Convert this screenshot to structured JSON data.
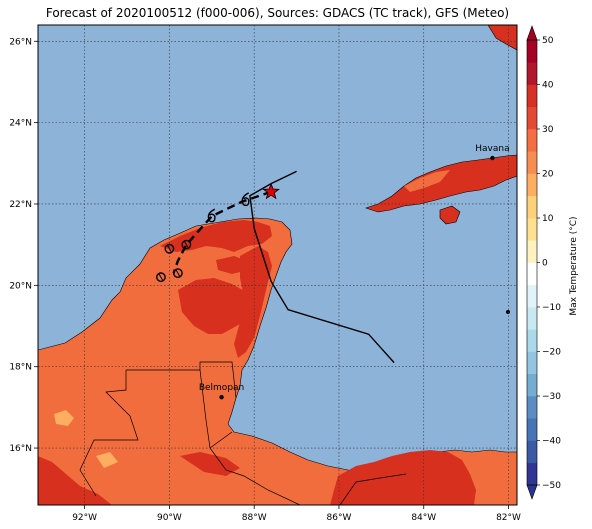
{
  "title": "Forecast of 2020100512 (f000-006), Sources: GDACS (TC track), GFS (Meteo)",
  "map": {
    "lon_range": [
      -93.1,
      -81.8
    ],
    "lat_range": [
      14.6,
      26.4
    ],
    "lon_ticks": [
      {
        "value": -92,
        "label": "92°W"
      },
      {
        "value": -90,
        "label": "90°W"
      },
      {
        "value": -88,
        "label": "88°W"
      },
      {
        "value": -86,
        "label": "86°W"
      },
      {
        "value": -84,
        "label": "84°W"
      },
      {
        "value": -82,
        "label": "82°W"
      }
    ],
    "lat_ticks": [
      {
        "value": 16,
        "label": "16°N"
      },
      {
        "value": 18,
        "label": "18°N"
      },
      {
        "value": 20,
        "label": "20°N"
      },
      {
        "value": 22,
        "label": "22°N"
      },
      {
        "value": 24,
        "label": "24°N"
      },
      {
        "value": 26,
        "label": "26°N"
      }
    ],
    "cities": [
      {
        "name": "Havana",
        "lon": -82.38,
        "lat": 23.13
      },
      {
        "name": "Belmopan",
        "lon": -88.77,
        "lat": 17.25
      }
    ],
    "colors": {
      "ocean": "#8db3d9",
      "land_warm": "#f26d3d",
      "land_hot": "#d7301f",
      "land_mild": "#fdae61",
      "land_dark": "#b2182b"
    }
  },
  "storm": {
    "current_position": {
      "lon": -87.6,
      "lat": 22.3
    },
    "forecast_track": [
      {
        "lon": -88.3,
        "lat": 22.05
      },
      {
        "lon": -89.0,
        "lat": 21.7
      },
      {
        "lon": -89.6,
        "lat": 21.0
      },
      {
        "lon": -89.8,
        "lat": 20.6
      },
      {
        "lon": -89.9,
        "lat": 20.3
      }
    ],
    "track_points": [
      {
        "lon": -88.2,
        "lat": 22.1,
        "symbol": "6"
      },
      {
        "lon": -89.0,
        "lat": 21.7,
        "symbol": "6"
      },
      {
        "lon": -89.6,
        "lat": 21.0,
        "symbol": "o"
      },
      {
        "lon": -90.0,
        "lat": 20.9,
        "symbol": "o"
      },
      {
        "lon": -89.8,
        "lat": 20.3,
        "symbol": "o"
      },
      {
        "lon": -90.2,
        "lat": 20.2,
        "symbol": "o"
      }
    ],
    "past_track": [
      {
        "lon": -84.7,
        "lat": 18.1
      },
      {
        "lon": -85.3,
        "lat": 18.8
      },
      {
        "lon": -87.2,
        "lat": 19.4
      },
      {
        "lon": -87.6,
        "lat": 20.1
      },
      {
        "lon": -88.0,
        "lat": 21.4
      },
      {
        "lon": -88.1,
        "lat": 22.2
      },
      {
        "lon": -87.6,
        "lat": 22.5
      },
      {
        "lon": -87.0,
        "lat": 22.8
      }
    ]
  },
  "colorbar": {
    "label": "Max Temperature (°C)",
    "levels": [
      -50,
      -45,
      -40,
      -35,
      -30,
      -25,
      -20,
      -15,
      -10,
      -5,
      0,
      5,
      10,
      15,
      20,
      25,
      30,
      35,
      40,
      45,
      50
    ],
    "tick_values": [
      50,
      40,
      30,
      20,
      10,
      0,
      -10,
      -20,
      -30,
      -40,
      -50
    ],
    "tick_labels": [
      "50",
      "40",
      "30",
      "20",
      "10",
      "0",
      "−10",
      "−20",
      "−30",
      "−40",
      "−50"
    ],
    "colors": [
      "#2a3593",
      "#313695",
      "#3c59a6",
      "#4575b4",
      "#5d8cc2",
      "#74add1",
      "#93c5e0",
      "#abd9e9",
      "#c9e9f2",
      "#e0f3f8",
      "#ffffff",
      "#fff2c0",
      "#fee090",
      "#fdd07a",
      "#fdae61",
      "#f88d52",
      "#f46d43",
      "#e34a33",
      "#d73027",
      "#b2182b",
      "#a50026"
    ]
  }
}
